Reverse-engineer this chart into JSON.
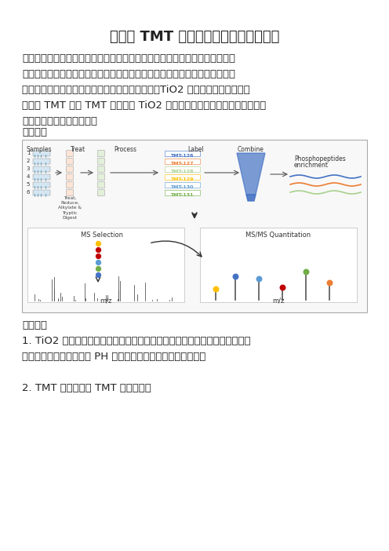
{
  "title": "磷酸化 TMT 蛋白组学的具体步骤及方法",
  "title_fontsize": 13,
  "title_bold": true,
  "body_fontsize": 9.5,
  "bg_color": "#ffffff",
  "text_color": "#333333",
  "paragraph1": "磷酸化是生物体内重要的蛋白质修饰种类，与酶活性、信号传导等多种极为重",
  "paragraph2": "要的生物过程相关。因为含量很低，磷酸化信号大规模分析前一般需要先将其",
  "paragraph3": "富集出来。目前磷酸化肽段的富集方式有很多种，TiO2 是其中最成熟的一种。",
  "paragraph4": "磷酸化 TMT 是将 TMT 技术以及 TiO2 对磷酸化肽段的亲和力联合起来，对",
  "paragraph5": "磷酸化肽段进行定量分析。",
  "section1": "技术流程",
  "section2": "技术原理",
  "principle1": "1. TiO2 在酸性条件下与磷酸化肽段具有强亲和力，碱性条件下又可将磷酸化",
  "principle2": "肽段洗脱，从而通过调节 PH 而将磷酸化肽段富集并洗脱下来；",
  "principle3": "2. TMT 定量原理见 TMT 宣传页面。"
}
